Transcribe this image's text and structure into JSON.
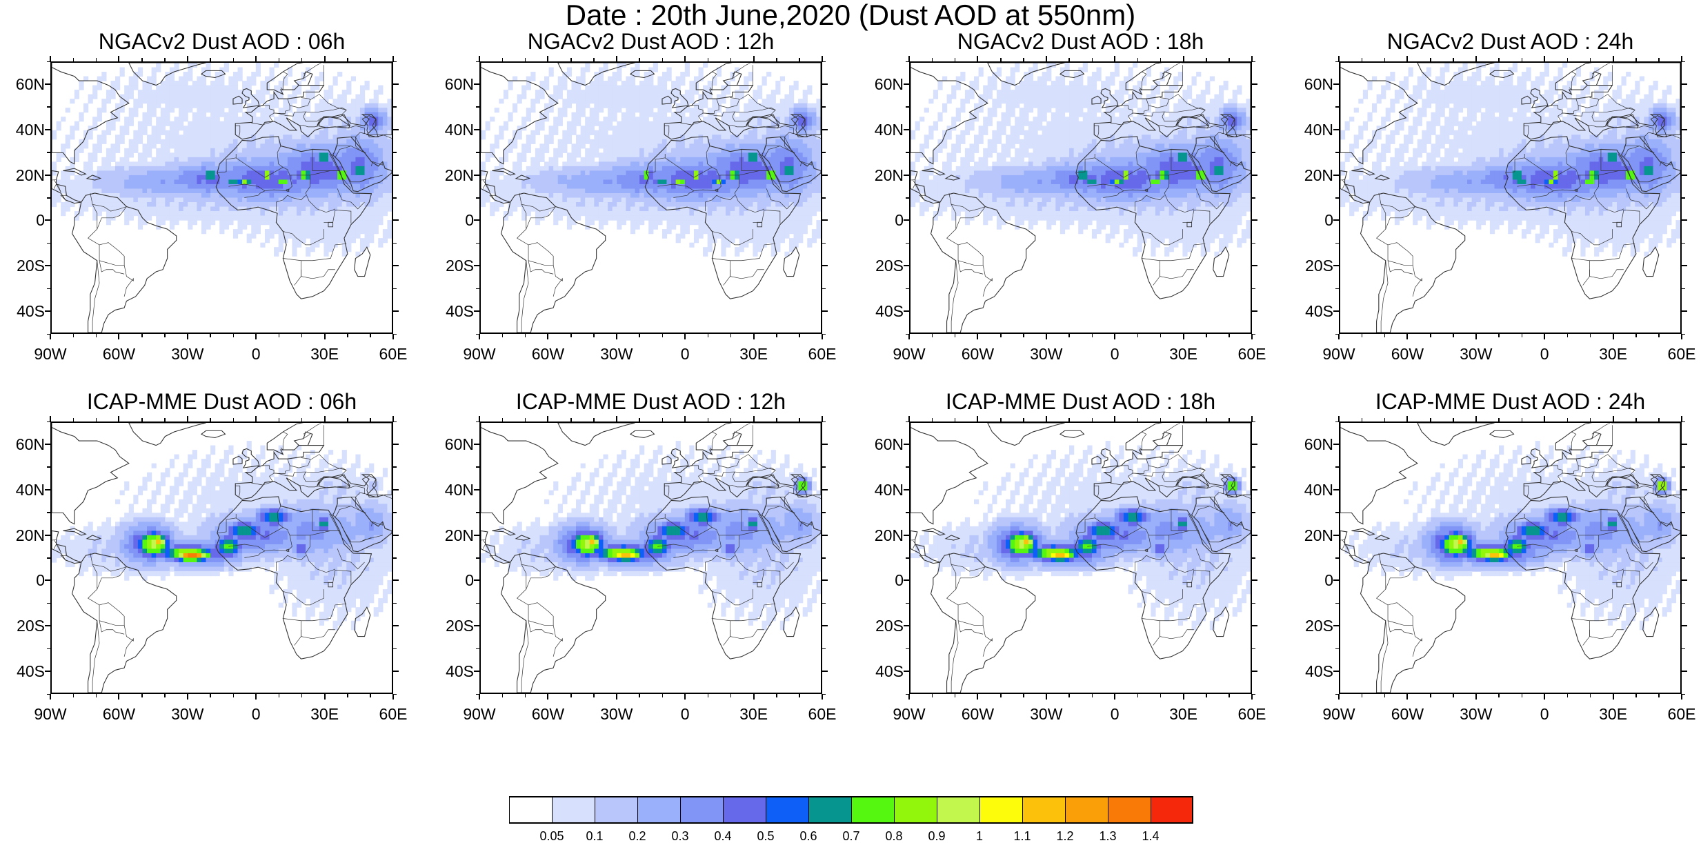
{
  "title": "Date : 20th June,2020 (Dust AOD at 550nm)",
  "axes": {
    "lat_labels": [
      "60N",
      "40N",
      "20N",
      "0",
      "20S",
      "40S"
    ],
    "lat_values": [
      60,
      40,
      20,
      0,
      -20,
      -40
    ],
    "lon_labels": [
      "90W",
      "60W",
      "30W",
      "0",
      "30E",
      "60E"
    ],
    "lon_values": [
      -90,
      -60,
      -30,
      0,
      30,
      60
    ],
    "lon_range": [
      -90,
      60
    ],
    "lat_range": [
      -50,
      70
    ]
  },
  "panels": [
    {
      "title": "NGACv2 Dust AOD : 06h",
      "model": "NGACv2",
      "lead": "06h"
    },
    {
      "title": "NGACv2 Dust AOD : 12h",
      "model": "NGACv2",
      "lead": "12h"
    },
    {
      "title": "NGACv2 Dust AOD : 18h",
      "model": "NGACv2",
      "lead": "18h"
    },
    {
      "title": "NGACv2 Dust AOD : 24h",
      "model": "NGACv2",
      "lead": "24h"
    },
    {
      "title": "ICAP-MME Dust AOD : 06h",
      "model": "ICAP-MME",
      "lead": "06h"
    },
    {
      "title": "ICAP-MME Dust AOD : 12h",
      "model": "ICAP-MME",
      "lead": "12h"
    },
    {
      "title": "ICAP-MME Dust AOD : 18h",
      "model": "ICAP-MME",
      "lead": "18h"
    },
    {
      "title": "ICAP-MME Dust AOD : 24h",
      "model": "ICAP-MME",
      "lead": "24h"
    }
  ],
  "colorbar": {
    "labels": [
      "0.05",
      "0.1",
      "0.2",
      "0.3",
      "0.4",
      "0.5",
      "0.6",
      "0.7",
      "0.8",
      "0.9",
      "1",
      "1.1",
      "1.2",
      "1.3",
      "1.4"
    ],
    "colors": [
      "#ffffff",
      "#d7e0fd",
      "#b8c6fb",
      "#9bb0fa",
      "#8095f6",
      "#6669e9",
      "#0d5ff8",
      "#07958f",
      "#55f610",
      "#91f60b",
      "#c2f74e",
      "#fcfc0b",
      "#fcc10a",
      "#fb9f08",
      "#f97a07",
      "#f5280c"
    ]
  },
  "colors": {
    "land_outline": "#333333",
    "background": "#ffffff"
  }
}
